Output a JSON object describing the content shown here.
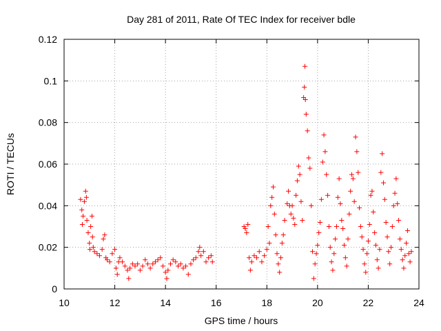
{
  "chart_data": {
    "type": "scatter",
    "title": "Day 281 of 2011, Rate Of TEC Index for receiver bdle",
    "xlabel": "GPS time / hours",
    "ylabel": "ROTI / TECUs",
    "xlim": [
      10,
      24
    ],
    "ylim": [
      0,
      0.12
    ],
    "x_ticks": [
      10,
      12,
      14,
      16,
      18,
      20,
      22,
      24
    ],
    "x_tick_labels": [
      "10",
      "12",
      "14",
      "16",
      "18",
      "20",
      "22",
      "24"
    ],
    "y_ticks": [
      0,
      0.02,
      0.04,
      0.06,
      0.08,
      0.1,
      0.12
    ],
    "y_tick_labels": [
      "0",
      "0.02",
      "0.04",
      "0.06",
      "0.08",
      "0.1",
      "0.12"
    ],
    "grid": true,
    "marker": "+",
    "color": "#ff0000",
    "series": [
      {
        "name": "ROTI",
        "points": [
          [
            10.65,
            0.043
          ],
          [
            10.7,
            0.038
          ],
          [
            10.72,
            0.031
          ],
          [
            10.75,
            0.035
          ],
          [
            10.8,
            0.042
          ],
          [
            10.85,
            0.047
          ],
          [
            10.88,
            0.044
          ],
          [
            10.9,
            0.033
          ],
          [
            10.95,
            0.027
          ],
          [
            11.0,
            0.022
          ],
          [
            11.02,
            0.019
          ],
          [
            11.05,
            0.03
          ],
          [
            11.1,
            0.035
          ],
          [
            11.12,
            0.025
          ],
          [
            11.15,
            0.02
          ],
          [
            11.2,
            0.018
          ],
          [
            11.3,
            0.017
          ],
          [
            11.4,
            0.016
          ],
          [
            11.5,
            0.019
          ],
          [
            11.55,
            0.024
          ],
          [
            11.6,
            0.026
          ],
          [
            11.65,
            0.015
          ],
          [
            11.7,
            0.014
          ],
          [
            11.8,
            0.013
          ],
          [
            11.9,
            0.017
          ],
          [
            12.0,
            0.019
          ],
          [
            12.05,
            0.01
          ],
          [
            12.1,
            0.007
          ],
          [
            12.15,
            0.013
          ],
          [
            12.2,
            0.015
          ],
          [
            12.3,
            0.013
          ],
          [
            12.4,
            0.011
          ],
          [
            12.5,
            0.009
          ],
          [
            12.55,
            0.005
          ],
          [
            12.6,
            0.01
          ],
          [
            12.7,
            0.012
          ],
          [
            12.8,
            0.011
          ],
          [
            12.9,
            0.012
          ],
          [
            13.0,
            0.009
          ],
          [
            13.1,
            0.011
          ],
          [
            13.2,
            0.014
          ],
          [
            13.3,
            0.012
          ],
          [
            13.4,
            0.01
          ],
          [
            13.5,
            0.012
          ],
          [
            13.6,
            0.013
          ],
          [
            13.7,
            0.014
          ],
          [
            13.8,
            0.015
          ],
          [
            13.9,
            0.011
          ],
          [
            14.0,
            0.008
          ],
          [
            14.05,
            0.005
          ],
          [
            14.1,
            0.009
          ],
          [
            14.2,
            0.012
          ],
          [
            14.3,
            0.014
          ],
          [
            14.4,
            0.013
          ],
          [
            14.5,
            0.011
          ],
          [
            14.6,
            0.012
          ],
          [
            14.7,
            0.01
          ],
          [
            14.8,
            0.011
          ],
          [
            14.9,
            0.007
          ],
          [
            15.0,
            0.012
          ],
          [
            15.1,
            0.014
          ],
          [
            15.2,
            0.015
          ],
          [
            15.3,
            0.018
          ],
          [
            15.35,
            0.02
          ],
          [
            15.4,
            0.016
          ],
          [
            15.5,
            0.018
          ],
          [
            15.6,
            0.013
          ],
          [
            15.7,
            0.015
          ],
          [
            15.8,
            0.016
          ],
          [
            15.85,
            0.013
          ],
          [
            17.1,
            0.03
          ],
          [
            17.15,
            0.029
          ],
          [
            17.2,
            0.027
          ],
          [
            17.25,
            0.031
          ],
          [
            17.3,
            0.015
          ],
          [
            17.35,
            0.009
          ],
          [
            17.4,
            0.013
          ],
          [
            17.5,
            0.016
          ],
          [
            17.6,
            0.015
          ],
          [
            17.7,
            0.018
          ],
          [
            17.8,
            0.013
          ],
          [
            17.9,
            0.016
          ],
          [
            18.0,
            0.019
          ],
          [
            18.05,
            0.03
          ],
          [
            18.1,
            0.022
          ],
          [
            18.15,
            0.04
          ],
          [
            18.2,
            0.044
          ],
          [
            18.25,
            0.049
          ],
          [
            18.3,
            0.036
          ],
          [
            18.35,
            0.026
          ],
          [
            18.4,
            0.017
          ],
          [
            18.45,
            0.012
          ],
          [
            18.5,
            0.008
          ],
          [
            18.55,
            0.015
          ],
          [
            18.6,
            0.022
          ],
          [
            18.65,
            0.026
          ],
          [
            18.7,
            0.033
          ],
          [
            18.8,
            0.041
          ],
          [
            18.85,
            0.047
          ],
          [
            18.9,
            0.04
          ],
          [
            18.95,
            0.036
          ],
          [
            19.0,
            0.04
          ],
          [
            19.05,
            0.034
          ],
          [
            19.1,
            0.031
          ],
          [
            19.15,
            0.045
          ],
          [
            19.2,
            0.052
          ],
          [
            19.25,
            0.059
          ],
          [
            19.3,
            0.055
          ],
          [
            19.35,
            0.042
          ],
          [
            19.4,
            0.033
          ],
          [
            19.45,
            0.092
          ],
          [
            19.48,
            0.097
          ],
          [
            19.5,
            0.107
          ],
          [
            19.52,
            0.091
          ],
          [
            19.55,
            0.084
          ],
          [
            19.6,
            0.076
          ],
          [
            19.65,
            0.063
          ],
          [
            19.7,
            0.058
          ],
          [
            19.75,
            0.04
          ],
          [
            19.8,
            0.018
          ],
          [
            19.85,
            0.005
          ],
          [
            19.9,
            0.012
          ],
          [
            19.95,
            0.017
          ],
          [
            20.0,
            0.021
          ],
          [
            20.05,
            0.027
          ],
          [
            20.1,
            0.032
          ],
          [
            20.15,
            0.043
          ],
          [
            20.2,
            0.061
          ],
          [
            20.25,
            0.074
          ],
          [
            20.3,
            0.066
          ],
          [
            20.35,
            0.055
          ],
          [
            20.4,
            0.045
          ],
          [
            20.45,
            0.03
          ],
          [
            20.5,
            0.02
          ],
          [
            20.55,
            0.013
          ],
          [
            20.6,
            0.009
          ],
          [
            20.65,
            0.017
          ],
          [
            20.7,
            0.024
          ],
          [
            20.75,
            0.03
          ],
          [
            20.8,
            0.044
          ],
          [
            20.85,
            0.053
          ],
          [
            20.9,
            0.041
          ],
          [
            20.95,
            0.033
          ],
          [
            21.0,
            0.029
          ],
          [
            21.05,
            0.021
          ],
          [
            21.1,
            0.015
          ],
          [
            21.15,
            0.011
          ],
          [
            21.2,
            0.024
          ],
          [
            21.25,
            0.036
          ],
          [
            21.3,
            0.047
          ],
          [
            21.35,
            0.055
          ],
          [
            21.4,
            0.053
          ],
          [
            21.45,
            0.042
          ],
          [
            21.5,
            0.073
          ],
          [
            21.55,
            0.066
          ],
          [
            21.6,
            0.056
          ],
          [
            21.65,
            0.039
          ],
          [
            21.7,
            0.03
          ],
          [
            21.75,
            0.025
          ],
          [
            21.8,
            0.019
          ],
          [
            21.85,
            0.012
          ],
          [
            21.9,
            0.008
          ],
          [
            21.95,
            0.017
          ],
          [
            22.0,
            0.023
          ],
          [
            22.05,
            0.031
          ],
          [
            22.1,
            0.045
          ],
          [
            22.15,
            0.047
          ],
          [
            22.2,
            0.037
          ],
          [
            22.25,
            0.027
          ],
          [
            22.3,
            0.021
          ],
          [
            22.35,
            0.014
          ],
          [
            22.4,
            0.01
          ],
          [
            22.45,
            0.019
          ],
          [
            22.5,
            0.056
          ],
          [
            22.55,
            0.065
          ],
          [
            22.6,
            0.051
          ],
          [
            22.65,
            0.043
          ],
          [
            22.7,
            0.032
          ],
          [
            22.75,
            0.025
          ],
          [
            22.8,
            0.018
          ],
          [
            22.85,
            0.012
          ],
          [
            22.9,
            0.02
          ],
          [
            22.95,
            0.03
          ],
          [
            23.0,
            0.04
          ],
          [
            23.05,
            0.046
          ],
          [
            23.1,
            0.053
          ],
          [
            23.15,
            0.041
          ],
          [
            23.2,
            0.033
          ],
          [
            23.25,
            0.024
          ],
          [
            23.3,
            0.019
          ],
          [
            23.35,
            0.014
          ],
          [
            23.4,
            0.01
          ],
          [
            23.45,
            0.016
          ],
          [
            23.5,
            0.022
          ],
          [
            23.55,
            0.028
          ],
          [
            23.6,
            0.017
          ],
          [
            23.65,
            0.013
          ],
          [
            23.7,
            0.018
          ]
        ]
      }
    ]
  }
}
